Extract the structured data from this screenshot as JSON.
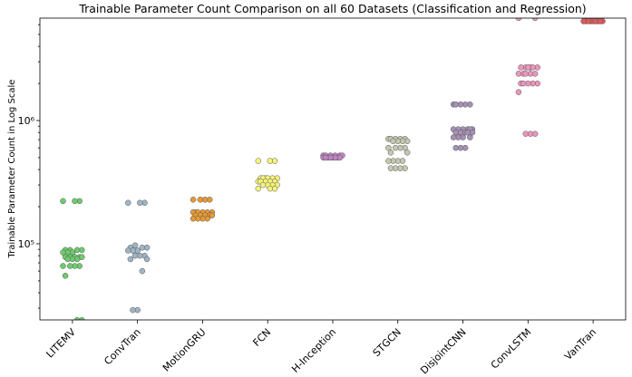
{
  "chart_data": {
    "type": "strip",
    "title": "Trainable Parameter Count Comparison on all 60 Datasets (Classification and Regression)",
    "ylabel": "Trainable Parameter Count in Log Scale",
    "log_y": true,
    "ylim": [
      24100,
      6780000
    ],
    "yticks": [
      {
        "value": 100000,
        "label": "10⁵"
      },
      {
        "value": 1000000,
        "label": "10⁶"
      }
    ],
    "yminorticks": [
      30000,
      40000,
      50000,
      60000,
      70000,
      80000,
      90000,
      200000,
      300000,
      400000,
      500000,
      600000,
      700000,
      800000,
      900000,
      2000000,
      3000000,
      4000000,
      5000000,
      6000000
    ],
    "categories": [
      "LITEMV",
      "ConvTran",
      "MotionGRU",
      "FCN",
      "H-Inception",
      "STGCN",
      "DisjointCNN",
      "ConvLSTM",
      "VanTran"
    ],
    "colors": [
      "#6fcb6f",
      "#9fb5c5",
      "#e59a35",
      "#f4f27a",
      "#c085c3",
      "#c5c7b0",
      "#a591b3",
      "#ec95bd",
      "#e05a5a"
    ],
    "values": [
      [
        222000,
        222000,
        222000,
        89000,
        89000,
        89000,
        89000,
        85000,
        85000,
        85000,
        78000,
        78000,
        78000,
        78000,
        78000,
        75000,
        75000,
        75000,
        66000,
        66000,
        66000,
        66000,
        55000,
        24000,
        24000
      ],
      [
        215000,
        215000,
        215000,
        97000,
        93000,
        93000,
        93000,
        88000,
        88000,
        88000,
        80000,
        80000,
        80000,
        75000,
        75000,
        60000,
        29000,
        29000
      ],
      [
        228000,
        228000,
        228000,
        228000,
        180000,
        180000,
        180000,
        180000,
        180000,
        180000,
        170000,
        170000,
        170000,
        170000,
        170000,
        160000,
        160000,
        160000,
        160000
      ],
      [
        470000,
        470000,
        470000,
        340000,
        340000,
        340000,
        340000,
        340000,
        340000,
        320000,
        320000,
        320000,
        320000,
        320000,
        300000,
        300000,
        300000,
        300000,
        280000,
        280000,
        280000
      ],
      [
        520000,
        520000,
        520000,
        520000,
        520000,
        520000,
        500000,
        500000,
        500000,
        500000,
        500000,
        500000,
        500000,
        500000
      ],
      [
        710000,
        710000,
        710000,
        710000,
        710000,
        680000,
        680000,
        680000,
        680000,
        600000,
        600000,
        600000,
        600000,
        550000,
        550000,
        470000,
        470000,
        470000,
        470000,
        410000,
        410000,
        410000,
        410000
      ],
      [
        1350000,
        1350000,
        1350000,
        1350000,
        1350000,
        850000,
        850000,
        850000,
        850000,
        850000,
        850000,
        800000,
        800000,
        800000,
        800000,
        800000,
        730000,
        730000,
        730000,
        730000,
        600000,
        600000,
        600000
      ],
      [
        6800000,
        6800000,
        2700000,
        2700000,
        2700000,
        2700000,
        2700000,
        2700000,
        2400000,
        2400000,
        2400000,
        2400000,
        2400000,
        2000000,
        2000000,
        2000000,
        2000000,
        2000000,
        1700000,
        780000,
        780000,
        780000
      ],
      [
        6400000,
        6400000,
        6400000,
        6400000,
        6400000,
        6400000,
        6400000,
        6400000,
        6400000,
        6400000,
        6400000,
        6400000
      ]
    ]
  }
}
